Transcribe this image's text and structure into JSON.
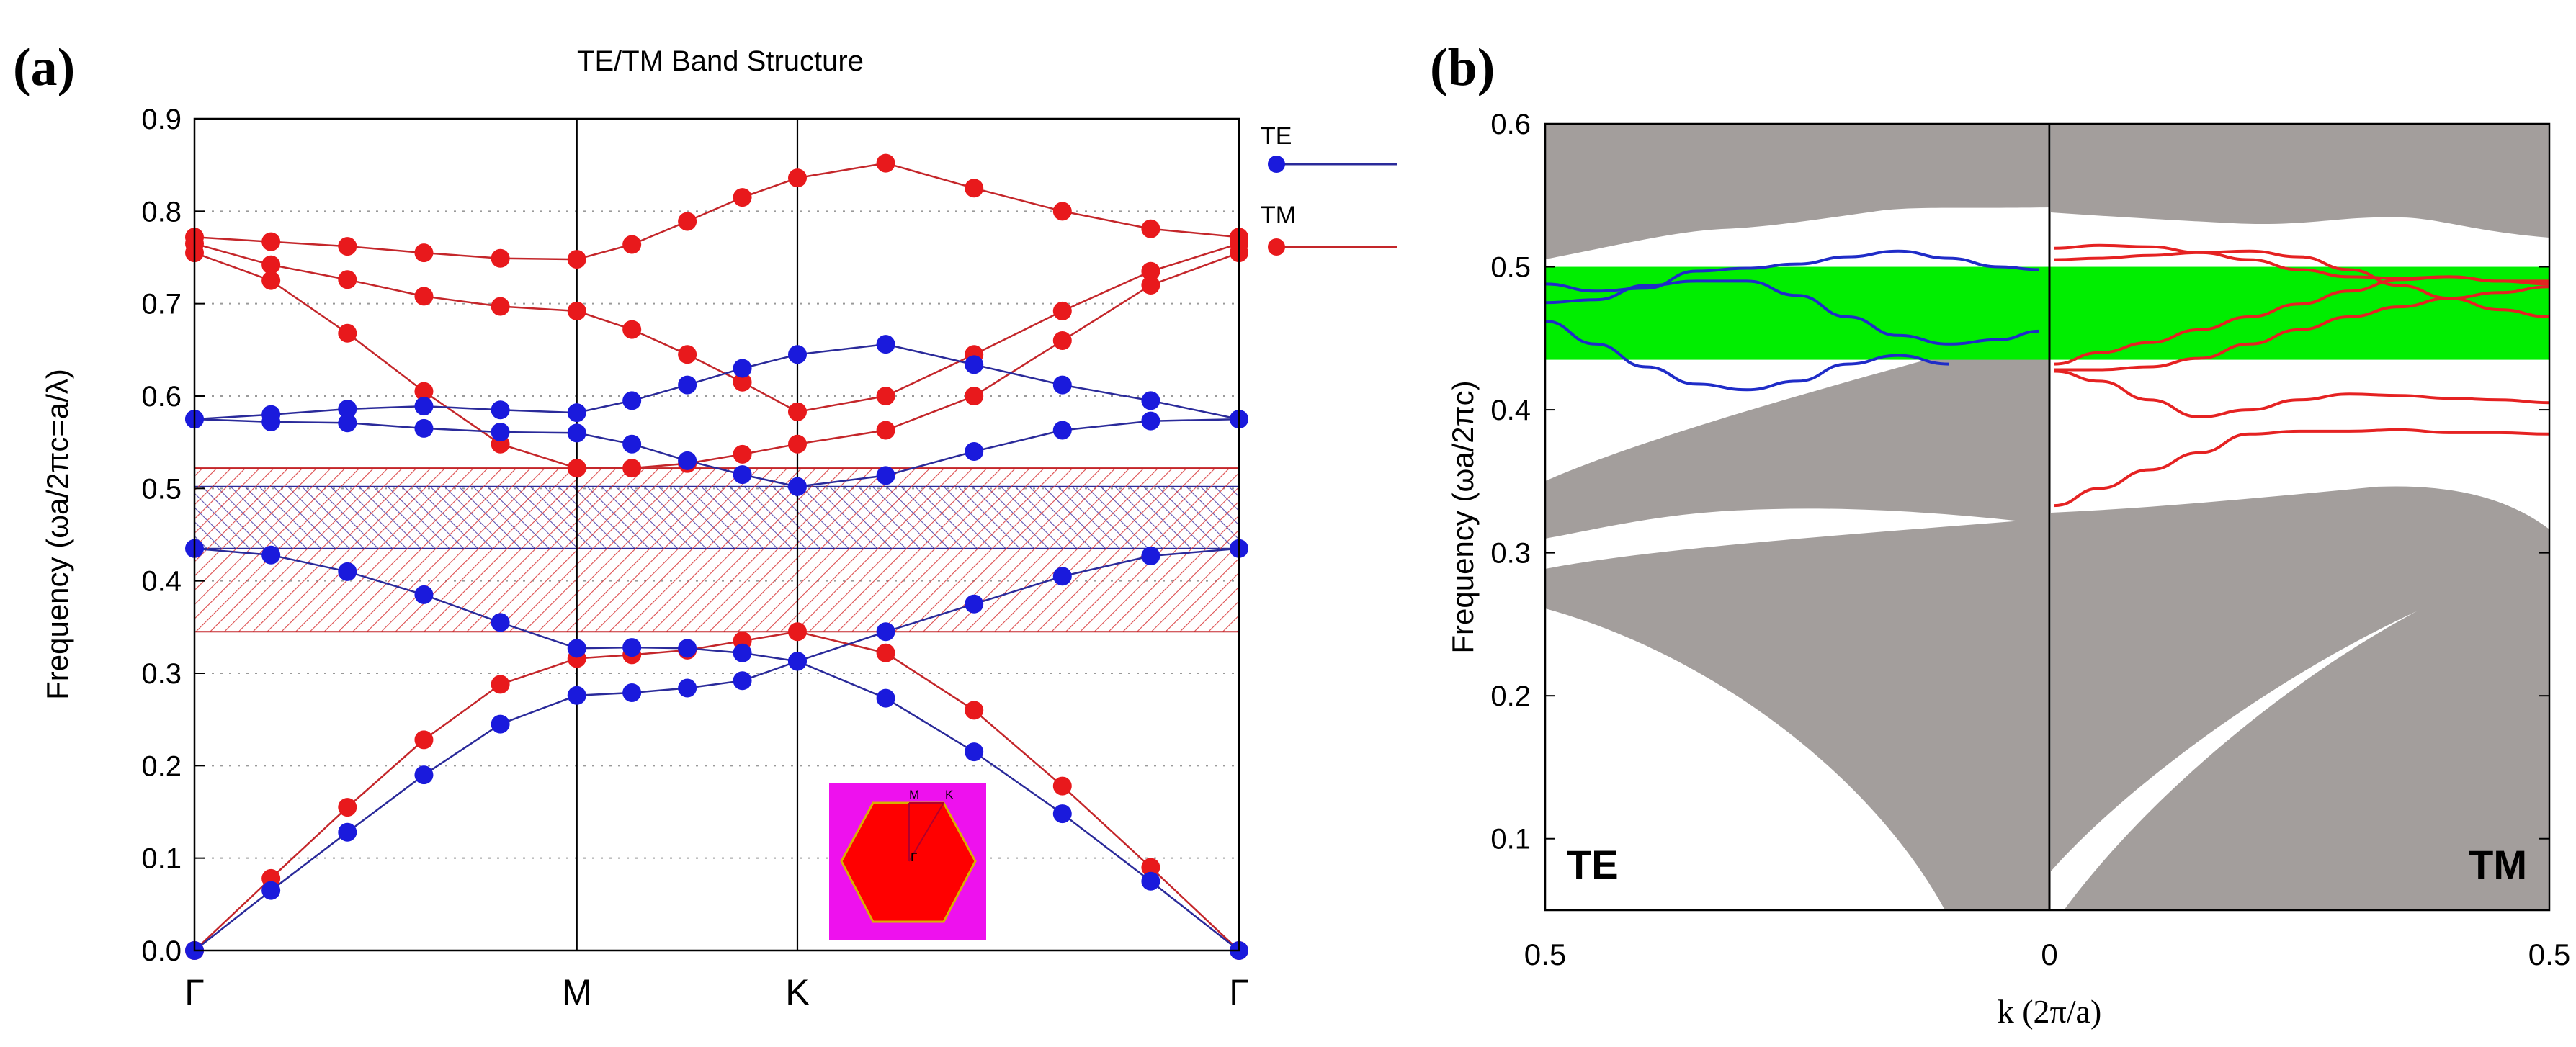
{
  "figure": {
    "panel_a_label": "(a)",
    "panel_b_label": "(b)"
  },
  "colors": {
    "te": "#1a1adc",
    "te_line": "#2a2a9a",
    "tm": "#e8191c",
    "tm_line": "#c4262a",
    "grey_band": "#a39e9c",
    "green_gap": "#00ee00",
    "magenta": "#ee11ee"
  },
  "chart_data": [
    {
      "type": "line",
      "title": "TE/TM Band Structure",
      "ylabel": "Frequency (ωa/2πc=a/λ)",
      "xlabel": "",
      "x_ticks": [
        "Γ",
        "M",
        "K",
        "Γ"
      ],
      "x_tick_positions": [
        0,
        1,
        1.577,
        2.732
      ],
      "ylim": [
        0,
        0.9
      ],
      "yticks": [
        "0.0",
        "0.1",
        "0.2",
        "0.3",
        "0.4",
        "0.5",
        "0.6",
        "0.7",
        "0.8",
        "0.9"
      ],
      "grid": "dotted horizontal",
      "legend": "right",
      "inset": {
        "labels": [
          "M",
          "K",
          "Γ"
        ],
        "description": "hexagonal Brillouin zone"
      },
      "gaps": [
        {
          "mode": "TE",
          "from": 0.435,
          "to": 0.502
        },
        {
          "mode": "TM",
          "from": 0.345,
          "to": 0.522
        }
      ],
      "series": [
        {
          "name": "TE",
          "band": 1,
          "x": [
            0,
            0.2,
            0.4,
            0.6,
            0.8,
            1,
            1.144,
            1.289,
            1.433,
            1.577,
            1.808,
            2.039,
            2.27,
            2.501,
            2.732
          ],
          "y": [
            0,
            0.065,
            0.128,
            0.19,
            0.245,
            0.276,
            0.279,
            0.284,
            0.292,
            0.313,
            0.273,
            0.215,
            0.148,
            0.075,
            0
          ]
        },
        {
          "name": "TE",
          "band": 2,
          "x": [
            0,
            0.2,
            0.4,
            0.6,
            0.8,
            1,
            1.144,
            1.289,
            1.433,
            1.577,
            1.808,
            2.039,
            2.27,
            2.501,
            2.732
          ],
          "y": [
            0.435,
            0.428,
            0.41,
            0.385,
            0.355,
            0.327,
            0.328,
            0.327,
            0.322,
            0.313,
            0.345,
            0.375,
            0.405,
            0.427,
            0.435
          ]
        },
        {
          "name": "TE",
          "band": 3,
          "x": [
            0,
            0.2,
            0.4,
            0.6,
            0.8,
            1,
            1.144,
            1.289,
            1.433,
            1.577,
            1.808,
            2.039,
            2.27,
            2.501,
            2.732
          ],
          "y": [
            0.575,
            0.572,
            0.571,
            0.565,
            0.561,
            0.56,
            0.548,
            0.53,
            0.515,
            0.502,
            0.514,
            0.54,
            0.563,
            0.573,
            0.575
          ]
        },
        {
          "name": "TE",
          "band": 4,
          "x": [
            0,
            0.2,
            0.4,
            0.6,
            0.8,
            1,
            1.144,
            1.289,
            1.433,
            1.577,
            1.808,
            2.039,
            2.27,
            2.501,
            2.732
          ],
          "y": [
            0.575,
            0.58,
            0.586,
            0.589,
            0.585,
            0.582,
            0.595,
            0.612,
            0.63,
            0.645,
            0.656,
            0.634,
            0.612,
            0.595,
            0.575
          ]
        },
        {
          "name": "TM",
          "band": 1,
          "x": [
            0,
            0.2,
            0.4,
            0.6,
            0.8,
            1,
            1.144,
            1.289,
            1.433,
            1.577,
            1.808,
            2.039,
            2.27,
            2.501,
            2.732
          ],
          "y": [
            0,
            0.078,
            0.155,
            0.228,
            0.288,
            0.316,
            0.32,
            0.325,
            0.335,
            0.345,
            0.322,
            0.26,
            0.178,
            0.09,
            0
          ]
        },
        {
          "name": "TM",
          "band": 2,
          "x": [
            0,
            0.2,
            0.4,
            0.6,
            0.8,
            1,
            1.144,
            1.289,
            1.433,
            1.577,
            1.808,
            2.039,
            2.27,
            2.501,
            2.732
          ],
          "y": [
            0.755,
            0.725,
            0.668,
            0.605,
            0.548,
            0.522,
            0.522,
            0.527,
            0.537,
            0.548,
            0.563,
            0.6,
            0.66,
            0.72,
            0.755
          ]
        },
        {
          "name": "TM",
          "band": 3,
          "x": [
            0,
            0.2,
            0.4,
            0.6,
            0.8,
            1,
            1.144,
            1.289,
            1.433,
            1.577,
            1.808,
            2.039,
            2.27,
            2.501,
            2.732
          ],
          "y": [
            0.765,
            0.742,
            0.726,
            0.708,
            0.697,
            0.692,
            0.672,
            0.645,
            0.615,
            0.583,
            0.6,
            0.645,
            0.692,
            0.735,
            0.765
          ]
        },
        {
          "name": "TM",
          "band": 4,
          "x": [
            0,
            0.2,
            0.4,
            0.6,
            0.8,
            1,
            1.144,
            1.289,
            1.433,
            1.577,
            1.808,
            2.039,
            2.27,
            2.501,
            2.732
          ],
          "y": [
            0.772,
            0.767,
            0.762,
            0.755,
            0.749,
            0.748,
            0.764,
            0.789,
            0.815,
            0.836,
            0.852,
            0.825,
            0.8,
            0.781,
            0.772
          ]
        }
      ]
    },
    {
      "type": "area",
      "ylabel": "Frequency (ωa/2πc)",
      "xlabel": "k (2π/a)",
      "x_ticks": [
        "0.5",
        "0",
        "0.5"
      ],
      "ylim": [
        0.05,
        0.6
      ],
      "yticks": [
        "0.1",
        "0.2",
        "0.3",
        "0.4",
        "0.5",
        "0.6"
      ],
      "panel_labels": [
        "TE",
        "TM"
      ],
      "green_gap": {
        "from": 0.435,
        "to": 0.5
      },
      "te_side_curves": [
        {
          "k": [
            0.5,
            0.45,
            0.4,
            0.35,
            0.3,
            0.25,
            0.2,
            0.15,
            0.1,
            0.05,
            0.01
          ],
          "f": [
            0.488,
            0.483,
            0.485,
            0.497,
            0.499,
            0.502,
            0.507,
            0.511,
            0.506,
            0.5,
            0.498
          ]
        },
        {
          "k": [
            0.5,
            0.45,
            0.4,
            0.35,
            0.3,
            0.25,
            0.2,
            0.15,
            0.1,
            0.05,
            0.01
          ],
          "f": [
            0.475,
            0.477,
            0.487,
            0.49,
            0.49,
            0.48,
            0.465,
            0.452,
            0.446,
            0.449,
            0.455
          ]
        },
        {
          "k": [
            0.5,
            0.45,
            0.4,
            0.35,
            0.3,
            0.25,
            0.2,
            0.15,
            0.1
          ],
          "f": [
            0.462,
            0.446,
            0.43,
            0.418,
            0.414,
            0.42,
            0.432,
            0.438,
            0.432
          ]
        }
      ],
      "tm_side_curves": [
        {
          "k": [
            0.005,
            0.05,
            0.1,
            0.15,
            0.2,
            0.25,
            0.3,
            0.35,
            0.4,
            0.45,
            0.5
          ],
          "f": [
            0.513,
            0.515,
            0.514,
            0.51,
            0.505,
            0.498,
            0.493,
            0.492,
            0.493,
            0.49,
            0.49
          ]
        },
        {
          "k": [
            0.005,
            0.05,
            0.1,
            0.15,
            0.2,
            0.25,
            0.3,
            0.35,
            0.4,
            0.45,
            0.5
          ],
          "f": [
            0.505,
            0.506,
            0.508,
            0.51,
            0.511,
            0.507,
            0.498,
            0.487,
            0.478,
            0.47,
            0.465
          ]
        },
        {
          "k": [
            0.005,
            0.05,
            0.1,
            0.15,
            0.2,
            0.25,
            0.3,
            0.35,
            0.4,
            0.45,
            0.5
          ],
          "f": [
            0.432,
            0.44,
            0.447,
            0.456,
            0.465,
            0.474,
            0.483,
            0.491,
            0.493,
            0.49,
            0.488
          ]
        },
        {
          "k": [
            0.005,
            0.05,
            0.1,
            0.15,
            0.2,
            0.25,
            0.3,
            0.35,
            0.4,
            0.45,
            0.5
          ],
          "f": [
            0.428,
            0.428,
            0.43,
            0.436,
            0.446,
            0.456,
            0.465,
            0.472,
            0.478,
            0.482,
            0.486
          ]
        },
        {
          "k": [
            0.005,
            0.05,
            0.1,
            0.15,
            0.2,
            0.25,
            0.3,
            0.35,
            0.4,
            0.45,
            0.5
          ],
          "f": [
            0.427,
            0.42,
            0.407,
            0.395,
            0.4,
            0.407,
            0.411,
            0.41,
            0.408,
            0.407,
            0.405
          ]
        },
        {
          "k": [
            0.005,
            0.05,
            0.1,
            0.15,
            0.2,
            0.25,
            0.3,
            0.35,
            0.4,
            0.45,
            0.5
          ],
          "f": [
            0.333,
            0.345,
            0.358,
            0.37,
            0.383,
            0.385,
            0.385,
            0.386,
            0.384,
            0.384,
            0.383
          ]
        }
      ]
    }
  ]
}
